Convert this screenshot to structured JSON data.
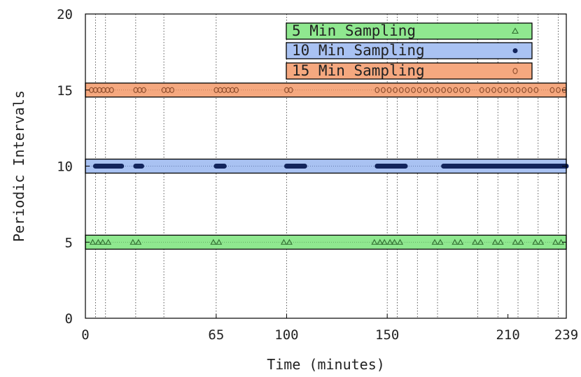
{
  "chart_data": {
    "type": "scatter",
    "title": "",
    "xlabel": "Time (minutes)",
    "ylabel": "Periodic Intervals",
    "xlim": [
      0,
      239
    ],
    "ylim": [
      0,
      20
    ],
    "xticks": [
      0,
      65,
      100,
      150,
      210,
      239
    ],
    "yticks": [
      0,
      5,
      10,
      15,
      20
    ],
    "grid": {
      "x_vertical_lines": [
        5,
        10,
        25,
        39,
        65,
        100,
        150,
        155,
        165,
        175,
        195,
        205,
        215,
        225,
        235
      ]
    },
    "legend_position": "top-center",
    "series": [
      {
        "name": "5 Min Sampling",
        "interval": 5,
        "marker": "triangle",
        "band_color": "#8fe88f",
        "marker_color": "#2f6b2f",
        "x": [
          5,
          10,
          25,
          65,
          100,
          145,
          150,
          155,
          175,
          185,
          195,
          205,
          215,
          225,
          235
        ]
      },
      {
        "name": "10 Min Sampling",
        "interval": 10,
        "marker": "dot",
        "band_color": "#a9c2f2",
        "marker_color": "#12245c",
        "segments": [
          [
            5,
            18
          ],
          [
            25,
            28
          ],
          [
            65,
            69
          ],
          [
            100,
            109
          ],
          [
            145,
            159
          ],
          [
            178,
            239
          ]
        ]
      },
      {
        "name": "15 Min Sampling",
        "interval": 15,
        "marker": "circle",
        "band_color": "#f5a87f",
        "marker_color": "#8a4a2a",
        "x": [
          3,
          5,
          7,
          9,
          11,
          13,
          25,
          27,
          29,
          39,
          41,
          43,
          65,
          67,
          69,
          71,
          73,
          75,
          100,
          102,
          145,
          148,
          151,
          154,
          157,
          160,
          163,
          166,
          169,
          172,
          175,
          178,
          181,
          184,
          187,
          190,
          197,
          200,
          203,
          206,
          209,
          212,
          215,
          218,
          221,
          224,
          232,
          235,
          238
        ]
      }
    ]
  }
}
